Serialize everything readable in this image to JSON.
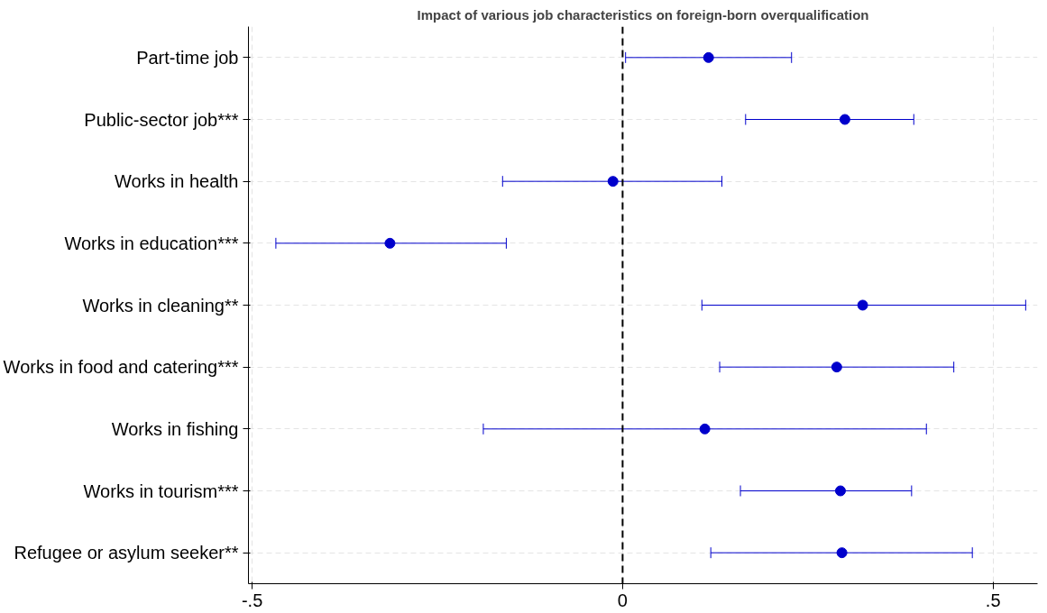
{
  "chart_data": {
    "type": "scatter",
    "title": "Impact of various job characteristics on foreign-born overqualification",
    "orientation": "horizontal",
    "categories": [
      "Part-time job",
      "Public-sector job***",
      "Works in health",
      "Works in education***",
      "Works in cleaning**",
      "Works in food and catering***",
      "Works in fishing",
      "Works in tourism***",
      "Refugee or asylum seeker**"
    ],
    "values": [
      0.116,
      0.3,
      -0.013,
      -0.314,
      0.324,
      0.289,
      0.111,
      0.294,
      0.296
    ],
    "errors": [
      [
        0.004,
        0.228
      ],
      [
        0.166,
        0.393
      ],
      [
        -0.162,
        0.134
      ],
      [
        -0.468,
        -0.157
      ],
      [
        0.107,
        0.544
      ],
      [
        0.131,
        0.447
      ],
      [
        -0.188,
        0.41
      ],
      [
        0.159,
        0.39
      ],
      [
        0.119,
        0.472
      ]
    ],
    "color": "#0000cc",
    "marker": "circle",
    "grid": true,
    "xlim": [
      -0.505,
      0.56
    ],
    "xticks": [
      {
        "value": -0.5,
        "label": "-.5"
      },
      0,
      {
        "value": 0.5,
        "label": ".5"
      }
    ],
    "ref_lines": [
      {
        "axis": "x",
        "value": 0,
        "color": "#000000",
        "line_style": "dashed"
      }
    ]
  }
}
